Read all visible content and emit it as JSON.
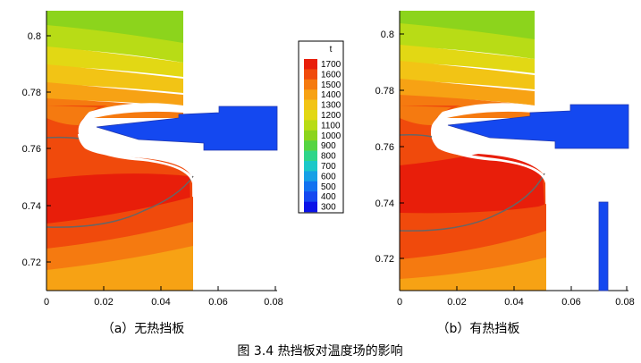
{
  "figure": {
    "caption": "图 3.4 热挡板对温度场的影响",
    "panels": [
      {
        "label": "（a）无热挡板",
        "has_shield": false
      },
      {
        "label": "（b）有热挡板",
        "has_shield": true
      }
    ]
  },
  "colorbar": {
    "title": "t",
    "levels": [
      1700,
      1600,
      1500,
      1400,
      1300,
      1200,
      1100,
      1000,
      900,
      800,
      700,
      600,
      500,
      400,
      300
    ],
    "level_labels": [
      "1700",
      "1600",
      "1500",
      "1400",
      "1300",
      "1200",
      "1100",
      "1000",
      "900",
      "800",
      "700",
      "600",
      "500",
      "400",
      "300"
    ],
    "colors": [
      "#e81e0a",
      "#f04a0c",
      "#f57a10",
      "#f7a214",
      "#f2c415",
      "#e2d814",
      "#b8dc16",
      "#8cd41c",
      "#55d442",
      "#2ed58a",
      "#1bc8c8",
      "#16a0e6",
      "#1272f0",
      "#1448f0",
      "#0a12e8"
    ]
  },
  "axes": {
    "x_ticks": [
      "0",
      "0.02",
      "0.04",
      "0.06",
      "0.08"
    ],
    "y_ticks": [
      "0.8",
      "0.78",
      "0.76",
      "0.74",
      "0.72"
    ]
  },
  "chart_data": [
    {
      "type": "contour",
      "title": "（a）无热挡板",
      "xlabel": "",
      "ylabel": "",
      "xlim": [
        -0.003,
        0.08
      ],
      "ylim": [
        0.709,
        0.809
      ],
      "x_ticks": [
        0,
        0.02,
        0.04,
        0.06,
        0.08
      ],
      "y_ticks": [
        0.72,
        0.74,
        0.76,
        0.78,
        0.8
      ],
      "color_scale": [
        300,
        1700
      ],
      "shield": false
    },
    {
      "type": "contour",
      "title": "（b）有热挡板",
      "xlabel": "",
      "ylabel": "",
      "xlim": [
        -0.003,
        0.08
      ],
      "ylim": [
        0.709,
        0.809
      ],
      "x_ticks": [
        0,
        0.02,
        0.04,
        0.06,
        0.08
      ],
      "y_ticks": [
        0.72,
        0.74,
        0.76,
        0.78,
        0.8
      ],
      "color_scale": [
        300,
        1700
      ],
      "shield": true
    }
  ]
}
